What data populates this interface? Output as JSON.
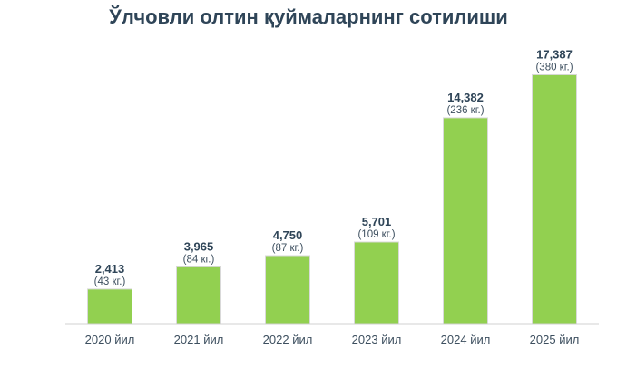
{
  "chart_data": {
    "type": "bar",
    "title": "Ўлчовли олтин қуймаларнинг сотилиши",
    "categories": [
      "2020 йил",
      "2021 йил",
      "2022 йил",
      "2023 йил",
      "2024 йил",
      "2025 йил"
    ],
    "values": [
      2413,
      3965,
      4750,
      5701,
      14382,
      17387
    ],
    "value_labels": [
      "2,413",
      "3,965",
      "4,750",
      "5,701",
      "14,382",
      "17,387"
    ],
    "sub_labels": [
      "(43 кг.)",
      "(84 кг.)",
      "(87 кг.)",
      "(109 кг.)",
      "(236 кг.)",
      "(380 кг.)"
    ],
    "xlabel": "",
    "ylabel": "",
    "ylim": [
      0,
      19000
    ],
    "grid": false,
    "bar_color": "#92d050",
    "axis_color": "#d0d0d0"
  }
}
